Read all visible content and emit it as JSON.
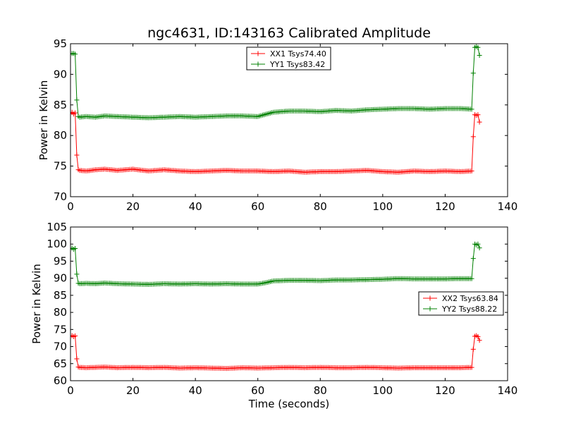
{
  "figure": {
    "title": "ngc4631, ID:143163 Calibrated Amplitude",
    "xlabel": "Time (seconds)"
  },
  "chart_data": [
    {
      "type": "line",
      "ylabel": "Power in Kelvin",
      "xlim": [
        0,
        140
      ],
      "ylim": [
        70,
        95
      ],
      "xticks": [
        0,
        20,
        40,
        60,
        80,
        100,
        120,
        140
      ],
      "yticks": [
        70,
        75,
        80,
        85,
        90,
        95
      ],
      "grid": false,
      "legend": "top-center",
      "marker": "+",
      "series": [
        {
          "name": "XX1 Tsys74.40",
          "color": "#ff0000",
          "x": [
            0,
            0.5,
            1,
            1.5,
            2,
            2.5,
            3,
            5,
            8,
            11,
            15,
            20,
            25,
            30,
            35,
            40,
            45,
            50,
            55,
            60,
            65,
            70,
            75,
            80,
            85,
            90,
            95,
            100,
            105,
            110,
            115,
            120,
            125,
            128.5,
            129,
            129.5,
            130,
            130.5,
            131
          ],
          "values": [
            83.6,
            83.8,
            83.5,
            83.7,
            76.8,
            74.4,
            74.3,
            74.2,
            74.4,
            74.5,
            74.3,
            74.5,
            74.2,
            74.4,
            74.2,
            74.1,
            74.2,
            74.3,
            74.2,
            74.2,
            74.1,
            74.2,
            74.0,
            74.1,
            74.1,
            74.2,
            74.3,
            74.1,
            74.0,
            74.2,
            74.1,
            74.2,
            74.1,
            74.2,
            79.8,
            83.4,
            83.3,
            83.4,
            82.2
          ]
        },
        {
          "name": "YY1 Tsys83.42",
          "color": "#008000",
          "x": [
            0,
            0.5,
            1,
            1.5,
            2,
            2.5,
            3,
            5,
            8,
            11,
            15,
            20,
            25,
            30,
            35,
            40,
            45,
            50,
            55,
            60,
            62,
            65,
            70,
            75,
            80,
            85,
            90,
            95,
            100,
            105,
            110,
            115,
            120,
            125,
            128.5,
            129,
            129.5,
            130,
            130.5,
            131
          ],
          "values": [
            93.3,
            93.4,
            93.4,
            93.3,
            85.8,
            83.1,
            83.0,
            83.1,
            83.0,
            83.2,
            83.1,
            83.0,
            82.9,
            83.0,
            83.1,
            83.0,
            83.1,
            83.2,
            83.2,
            83.1,
            83.4,
            83.8,
            84.0,
            84.0,
            83.9,
            84.1,
            84.0,
            84.2,
            84.3,
            84.4,
            84.4,
            84.3,
            84.4,
            84.4,
            84.3,
            90.2,
            94.4,
            94.5,
            94.4,
            93.1
          ]
        }
      ]
    },
    {
      "type": "line",
      "ylabel": "Power in Kelvin",
      "xlim": [
        0,
        140
      ],
      "ylim": [
        60,
        105
      ],
      "xticks": [
        0,
        20,
        40,
        60,
        80,
        100,
        120,
        140
      ],
      "yticks": [
        60,
        65,
        70,
        75,
        80,
        85,
        90,
        95,
        100,
        105
      ],
      "grid": false,
      "legend": "center-right",
      "marker": "+",
      "series": [
        {
          "name": "XX2 Tsys63.84",
          "color": "#ff0000",
          "x": [
            0,
            0.5,
            1,
            1.5,
            2,
            2.5,
            3,
            5,
            8,
            11,
            15,
            20,
            25,
            30,
            35,
            40,
            45,
            50,
            55,
            60,
            65,
            70,
            75,
            80,
            85,
            90,
            95,
            100,
            105,
            110,
            115,
            120,
            125,
            128.5,
            129,
            129.5,
            130,
            130.5,
            131
          ],
          "values": [
            73.0,
            73.2,
            72.9,
            73.1,
            66.4,
            64.0,
            63.9,
            63.8,
            63.9,
            64.0,
            63.8,
            63.9,
            63.8,
            63.9,
            63.7,
            63.8,
            63.7,
            63.6,
            63.8,
            63.7,
            63.8,
            63.9,
            63.8,
            63.9,
            63.8,
            63.8,
            63.9,
            63.8,
            63.7,
            63.8,
            63.8,
            63.8,
            63.8,
            63.9,
            69.2,
            73.0,
            73.2,
            72.9,
            71.8
          ]
        },
        {
          "name": "YY2 Tsys88.22",
          "color": "#008000",
          "x": [
            0,
            0.5,
            1,
            1.5,
            2,
            2.5,
            3,
            5,
            8,
            11,
            15,
            20,
            25,
            30,
            35,
            40,
            45,
            50,
            55,
            60,
            62,
            65,
            70,
            75,
            80,
            85,
            90,
            95,
            100,
            105,
            110,
            115,
            120,
            125,
            128.5,
            129,
            129.5,
            130,
            130.5,
            131
          ],
          "values": [
            98.6,
            98.8,
            98.5,
            98.7,
            91.2,
            88.5,
            88.4,
            88.5,
            88.4,
            88.6,
            88.4,
            88.3,
            88.2,
            88.4,
            88.3,
            88.4,
            88.3,
            88.4,
            88.3,
            88.3,
            88.6,
            89.2,
            89.4,
            89.4,
            89.3,
            89.5,
            89.5,
            89.6,
            89.7,
            89.9,
            89.8,
            89.8,
            89.8,
            89.9,
            89.9,
            95.8,
            100.0,
            99.8,
            100.0,
            98.9
          ]
        }
      ]
    }
  ]
}
